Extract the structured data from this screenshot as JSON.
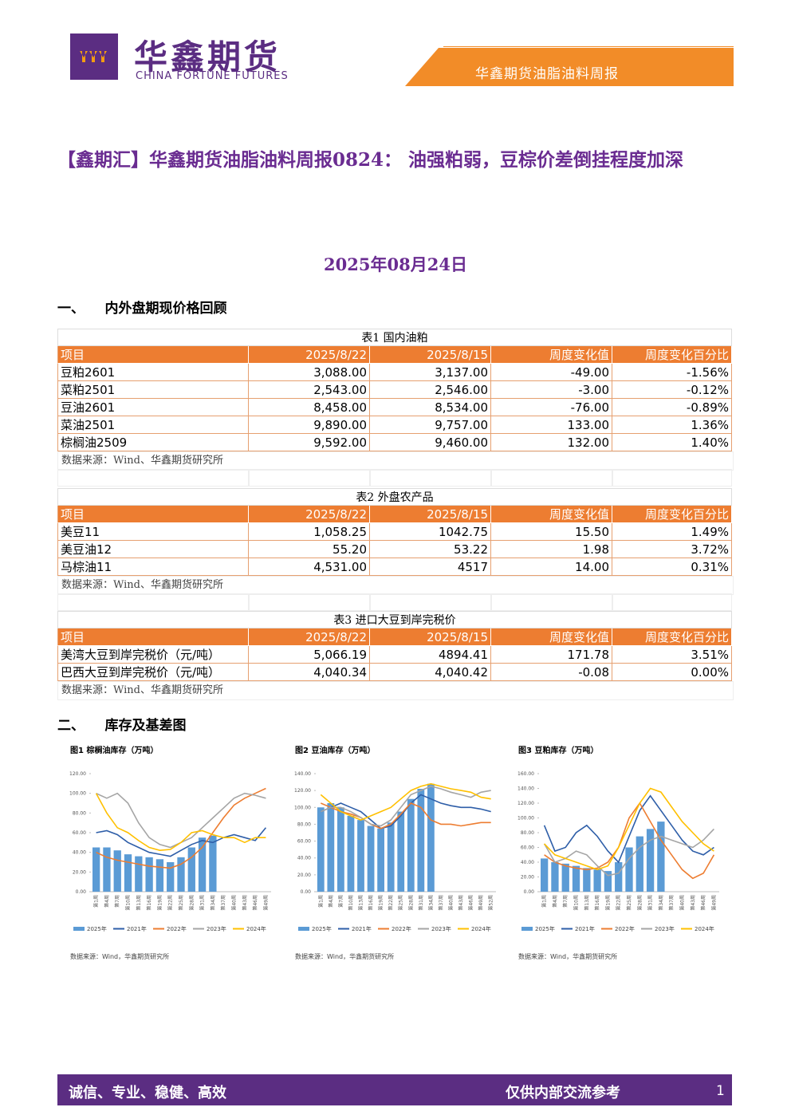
{
  "header": {
    "logo_cn": "华鑫期货",
    "logo_en": "CHINA FORTUNE FUTURES",
    "report_name": "华鑫期货油脂油料周报"
  },
  "title": "【鑫期汇】华鑫期货油脂油料周报0824： 油强粕弱，豆棕价差倒挂程度加深",
  "date": "2025年08月24日",
  "sections": [
    "一、　　内外盘期现价格回顾",
    "二、　　库存及基差图"
  ],
  "tables": [
    {
      "caption": "表1 国内油粕",
      "header": [
        "项目",
        "2025/8/22",
        "2025/8/15",
        "周度变化值",
        "周度变化百分比"
      ],
      "rows": [
        [
          "豆粕2601",
          "3,088.00",
          "3,137.00",
          "-49.00",
          "-1.56%"
        ],
        [
          "菜粕2501",
          "2,543.00",
          "2,546.00",
          "-3.00",
          "-0.12%"
        ],
        [
          "豆油2601",
          "8,458.00",
          "8,534.00",
          "-76.00",
          "-0.89%"
        ],
        [
          "菜油2501",
          "9,890.00",
          "9,757.00",
          "133.00",
          "1.36%"
        ],
        [
          "棕榈油2509",
          "9,592.00",
          "9,460.00",
          "132.00",
          "1.40%"
        ]
      ],
      "source": "数据来源：Wind、华鑫期货研究所"
    },
    {
      "caption": "表2 外盘农产品",
      "header": [
        "项目",
        "2025/8/22",
        "2025/8/15",
        "周度变化值",
        "周度变化百分比"
      ],
      "rows": [
        [
          "美豆11",
          "1,058.25",
          "1042.75",
          "15.50",
          "1.49%"
        ],
        [
          "美豆油12",
          "55.20",
          "53.22",
          "1.98",
          "3.72%"
        ],
        [
          "马棕油11",
          "4,531.00",
          "4517",
          "14.00",
          "0.31%"
        ]
      ],
      "source": "数据来源：Wind、华鑫期货研究所"
    },
    {
      "caption": "表3 进口大豆到岸完税价",
      "header": [
        "项目",
        "2025/8/22",
        "2025/8/15",
        "周度变化值",
        "周度变化百分比"
      ],
      "rows": [
        [
          "美湾大豆到岸完税价（元/吨）",
          "5,066.19",
          "4894.41",
          "171.78",
          "3.51%"
        ],
        [
          "巴西大豆到岸完税价（元/吨）",
          "4,040.34",
          "4,040.42",
          "-0.08",
          "0.00%"
        ]
      ],
      "source": "数据来源：Wind、华鑫期货研究所"
    }
  ],
  "chart_data": [
    {
      "type": "combo",
      "title": "图1 棕榈油库存（万吨）",
      "categories": [
        "第1周",
        "第4周",
        "第7周",
        "第10周",
        "第13周",
        "第16周",
        "第19周",
        "第22周",
        "第25周",
        "第28周",
        "第31周",
        "第34周",
        "第37周",
        "第40周",
        "第43周",
        "第46周",
        "第49周"
      ],
      "ylim": [
        0,
        120
      ],
      "yticks": [
        {
          "value": 0,
          "label": "0.00"
        },
        {
          "value": 20,
          "label": "20.00"
        },
        {
          "value": 40,
          "label": "40.00"
        },
        {
          "value": 60,
          "label": "60.00"
        },
        {
          "value": 80,
          "label": "80.00"
        },
        {
          "value": 100,
          "label": "100.00"
        },
        {
          "value": 120,
          "label": "120.00"
        }
      ],
      "series": [
        {
          "name": "2025年",
          "color": "#5b9bd5",
          "kind": "bar",
          "values": [
            45,
            45,
            42,
            38,
            36,
            35,
            33,
            30,
            35,
            45,
            55,
            57,
            null,
            null,
            null,
            null,
            null
          ]
        },
        {
          "name": "2021年",
          "color": "#2e5ea8",
          "kind": "line",
          "values": [
            60,
            62,
            58,
            50,
            45,
            40,
            38,
            36,
            42,
            48,
            52,
            50,
            55,
            58,
            55,
            52,
            65
          ]
        },
        {
          "name": "2022年",
          "color": "#ed7d31",
          "kind": "line",
          "values": [
            40,
            35,
            32,
            30,
            28,
            26,
            25,
            24,
            28,
            35,
            45,
            60,
            75,
            88,
            95,
            100,
            105
          ]
        },
        {
          "name": "2023年",
          "color": "#a5a5a5",
          "kind": "line",
          "values": [
            100,
            95,
            100,
            90,
            70,
            55,
            48,
            45,
            50,
            55,
            65,
            75,
            85,
            95,
            100,
            98,
            95
          ]
        },
        {
          "name": "2024年",
          "color": "#ffc000",
          "kind": "line",
          "values": [
            100,
            80,
            65,
            60,
            52,
            45,
            42,
            43,
            50,
            60,
            62,
            58,
            55,
            55,
            50,
            55,
            55
          ]
        }
      ],
      "source": "数据来源：Wind，华鑫期货研究所"
    },
    {
      "type": "combo",
      "title": "图2 豆油库存（万吨）",
      "categories": [
        "第1周",
        "第4周",
        "第7周",
        "第10周",
        "第13周",
        "第16周",
        "第19周",
        "第22周",
        "第25周",
        "第28周",
        "第31周",
        "第34周",
        "第37周",
        "第40周",
        "第43周",
        "第46周",
        "第49周",
        "第52周"
      ],
      "ylim": [
        0,
        140
      ],
      "yticks": [
        {
          "value": 0,
          "label": "0.00"
        },
        {
          "value": 20,
          "label": "20.00"
        },
        {
          "value": 40,
          "label": "40.00"
        },
        {
          "value": 60,
          "label": "60.00"
        },
        {
          "value": 80,
          "label": "80.00"
        },
        {
          "value": 100,
          "label": "100.00"
        },
        {
          "value": 120,
          "label": "120.00"
        },
        {
          "value": 140,
          "label": "140.00"
        }
      ],
      "series": [
        {
          "name": "2025年",
          "color": "#5b9bd5",
          "kind": "bar",
          "values": [
            100,
            105,
            100,
            90,
            85,
            78,
            75,
            82,
            95,
            110,
            122,
            128,
            null,
            null,
            null,
            null,
            null,
            null
          ]
        },
        {
          "name": "2021年",
          "color": "#2e5ea8",
          "kind": "line",
          "values": [
            95,
            100,
            105,
            100,
            95,
            85,
            75,
            78,
            90,
            105,
            115,
            110,
            105,
            102,
            100,
            100,
            98,
            95
          ]
        },
        {
          "name": "2022年",
          "color": "#ed7d31",
          "kind": "line",
          "values": [
            105,
            100,
            95,
            92,
            88,
            80,
            75,
            80,
            92,
            105,
            100,
            85,
            80,
            80,
            78,
            80,
            82,
            82
          ]
        },
        {
          "name": "2023年",
          "color": "#a5a5a5",
          "kind": "line",
          "values": [
            95,
            100,
            100,
            95,
            88,
            80,
            78,
            85,
            100,
            115,
            120,
            125,
            122,
            118,
            115,
            112,
            118,
            120
          ]
        },
        {
          "name": "2024年",
          "color": "#ffc000",
          "kind": "line",
          "values": [
            115,
            105,
            95,
            90,
            85,
            90,
            95,
            100,
            110,
            120,
            125,
            128,
            125,
            122,
            120,
            118,
            112,
            110
          ]
        }
      ],
      "source": "数据来源：Wind，华鑫期货研究所"
    },
    {
      "type": "combo",
      "title": "图3 豆粕库存（万吨）",
      "categories": [
        "第1周",
        "第4周",
        "第7周",
        "第10周",
        "第13周",
        "第16周",
        "第19周",
        "第22周",
        "第25周",
        "第28周",
        "第31周",
        "第34周",
        "第37周",
        "第40周",
        "第43周",
        "第46周",
        "第49周"
      ],
      "ylim": [
        0,
        160
      ],
      "yticks": [
        {
          "value": 0,
          "label": "0.00"
        },
        {
          "value": 20,
          "label": "20.00"
        },
        {
          "value": 40,
          "label": "40.00"
        },
        {
          "value": 60,
          "label": "60.00"
        },
        {
          "value": 80,
          "label": "80.00"
        },
        {
          "value": 100,
          "label": "100.00"
        },
        {
          "value": 120,
          "label": "120.00"
        },
        {
          "value": 140,
          "label": "140.00"
        },
        {
          "value": 160,
          "label": "160.00"
        }
      ],
      "series": [
        {
          "name": "2025年",
          "color": "#5b9bd5",
          "kind": "bar",
          "values": [
            45,
            40,
            38,
            35,
            32,
            30,
            28,
            40,
            60,
            75,
            85,
            95,
            null,
            null,
            null,
            null,
            null
          ]
        },
        {
          "name": "2021年",
          "color": "#2e5ea8",
          "kind": "line",
          "values": [
            90,
            55,
            60,
            80,
            90,
            75,
            55,
            40,
            75,
            110,
            130,
            110,
            90,
            70,
            55,
            50,
            60
          ]
        },
        {
          "name": "2022年",
          "color": "#ed7d31",
          "kind": "line",
          "values": [
            50,
            40,
            35,
            32,
            30,
            32,
            40,
            60,
            100,
            120,
            95,
            70,
            50,
            30,
            18,
            25,
            50
          ]
        },
        {
          "name": "2023年",
          "color": "#a5a5a5",
          "kind": "line",
          "values": [
            65,
            40,
            45,
            55,
            50,
            35,
            22,
            25,
            45,
            60,
            70,
            75,
            70,
            65,
            60,
            70,
            85
          ]
        },
        {
          "name": "2024年",
          "color": "#ffc000",
          "kind": "line",
          "values": [
            65,
            50,
            45,
            40,
            35,
            30,
            35,
            60,
            90,
            120,
            140,
            135,
            115,
            95,
            80,
            65,
            55
          ]
        }
      ],
      "source": "数据来源：Wind，华鑫期货研究所"
    }
  ],
  "footer": {
    "motto": "诚信、专业、稳健、高效",
    "notice": "仅供内部交流参考",
    "page": "1"
  }
}
